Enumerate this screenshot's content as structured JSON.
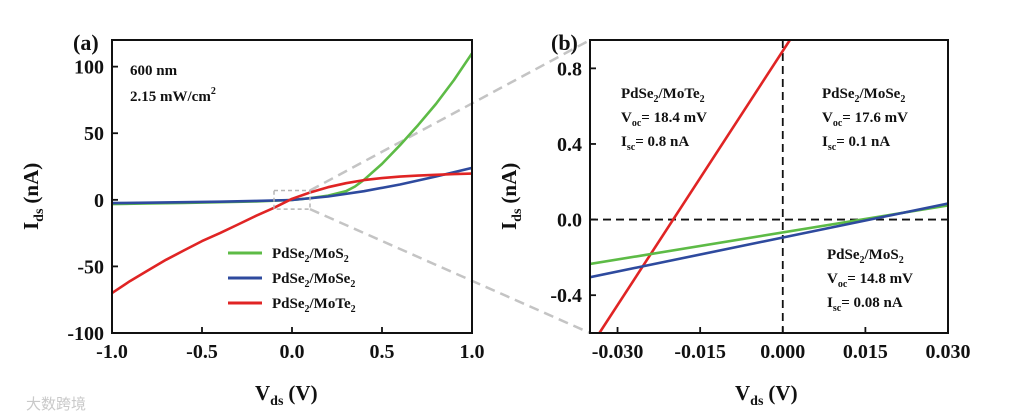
{
  "watermark": "大数跨境",
  "chart_data": [
    {
      "panel": "(a)",
      "type": "line",
      "xlabel": "V",
      "xlabel_sub": "ds",
      "xunit": "(V)",
      "ylabel": "I",
      "ylabel_sub": "ds",
      "yunit": "(nA)",
      "xlim": [
        -1.0,
        1.0
      ],
      "ylim": [
        -100,
        120
      ],
      "xticks": [
        -1.0,
        -0.5,
        0.0,
        0.5,
        1.0
      ],
      "xtick_labels": [
        "-1.0",
        "-0.5",
        "0.0",
        "0.5",
        "1.0"
      ],
      "yticks": [
        -100,
        -50,
        0,
        50,
        100
      ],
      "ytick_labels": [
        "-100",
        "-50",
        "0",
        "50",
        "100"
      ],
      "annotations": [
        "600 nm",
        "2.15  mW/cm",
        "2"
      ],
      "zoom_box": {
        "x": [
          -0.1,
          0.1
        ],
        "y": [
          -7,
          7
        ]
      },
      "series": [
        {
          "name_main": "PdSe",
          "name_sub1": "2",
          "name_mid": "/MoS",
          "name_sub2": "2",
          "color": "#5dbb46",
          "x": [
            -1.0,
            -0.8,
            -0.6,
            -0.4,
            -0.2,
            0.0,
            0.1,
            0.2,
            0.3,
            0.35,
            0.4,
            0.5,
            0.6,
            0.7,
            0.8,
            0.9,
            1.0
          ],
          "y": [
            -3.2,
            -2.8,
            -2.3,
            -1.8,
            -1.2,
            -0.1,
            1.2,
            3.2,
            6.5,
            10,
            15,
            27,
            41,
            56,
            72,
            90,
            110
          ]
        },
        {
          "name_main": "PdSe",
          "name_sub1": "2",
          "name_mid": "/MoSe",
          "name_sub2": "2",
          "color": "#2e4a9e",
          "x": [
            -1.0,
            -0.8,
            -0.6,
            -0.4,
            -0.2,
            0.0,
            0.2,
            0.4,
            0.6,
            0.8,
            1.0
          ],
          "y": [
            -2.5,
            -2.2,
            -1.8,
            -1.4,
            -0.8,
            -0.1,
            2.5,
            6.5,
            11.5,
            17.5,
            24
          ]
        },
        {
          "name_main": "PdSe",
          "name_sub1": "2",
          "name_mid": "/MoTe",
          "name_sub2": "2",
          "color": "#e02424",
          "x": [
            -1.0,
            -0.9,
            -0.8,
            -0.7,
            -0.6,
            -0.5,
            -0.4,
            -0.3,
            -0.2,
            -0.1,
            0.0,
            0.1,
            0.2,
            0.3,
            0.4,
            0.5,
            0.6,
            0.7,
            0.8,
            0.9,
            1.0
          ],
          "y": [
            -70,
            -61,
            -53,
            -45,
            -38,
            -31,
            -25,
            -18.5,
            -12,
            -6,
            0.8,
            5.5,
            9.5,
            12.5,
            14.8,
            16.3,
            17.4,
            18.2,
            18.8,
            19.3,
            19.7
          ]
        }
      ]
    },
    {
      "panel": "(b)",
      "type": "line",
      "xlabel": "V",
      "xlabel_sub": "ds",
      "xunit": "(V)",
      "ylabel": "I",
      "ylabel_sub": "ds",
      "yunit": "(nA)",
      "xlim": [
        -0.035,
        0.03
      ],
      "ylim": [
        -0.6,
        0.95
      ],
      "xticks": [
        -0.03,
        -0.015,
        0.0,
        0.015,
        0.03
      ],
      "xtick_labels": [
        "-0.030",
        "-0.015",
        "0.000",
        "0.015",
        "0.030"
      ],
      "yticks": [
        -0.4,
        0.0,
        0.4,
        0.8
      ],
      "ytick_labels": [
        "-0.4",
        "0.0",
        "0.4",
        "0.8"
      ],
      "annotations": [
        {
          "title_main": "PdSe",
          "title_sub1": "2",
          "title_mid": "/MoTe",
          "title_sub2": "2",
          "voc_label": "V",
          "voc_sub": "oc",
          "voc_value": "= 18.4 mV",
          "isc_label": "I",
          "isc_sub": "sc",
          "isc_value": "= 0.8 nA"
        },
        {
          "title_main": "PdSe",
          "title_sub1": "2",
          "title_mid": "/MoSe",
          "title_sub2": "2",
          "voc_label": "V",
          "voc_sub": "oc",
          "voc_value": "= 17.6 mV",
          "isc_label": "I",
          "isc_sub": "sc",
          "isc_value": "= 0.1 nA"
        },
        {
          "title_main": "PdSe",
          "title_sub1": "2",
          "title_mid": "/MoS",
          "title_sub2": "2",
          "voc_label": "V",
          "voc_sub": "oc",
          "voc_value": "= 14.8 mV",
          "isc_label": "I",
          "isc_sub": "sc",
          "isc_value": "= 0.08 nA"
        }
      ],
      "series": [
        {
          "name": "PdSe2/MoTe2",
          "color": "#e02424",
          "x": [
            -0.0333,
            0.0013
          ],
          "y": [
            -0.6,
            0.95
          ]
        },
        {
          "name": "PdSe2/MoS2",
          "color": "#5dbb46",
          "x": [
            -0.035,
            0.03
          ],
          "y": [
            -0.235,
            0.075
          ]
        },
        {
          "name": "PdSe2/MoSe2",
          "color": "#2e4a9e",
          "x": [
            -0.035,
            0.03
          ],
          "y": [
            -0.305,
            0.085
          ]
        }
      ]
    }
  ]
}
